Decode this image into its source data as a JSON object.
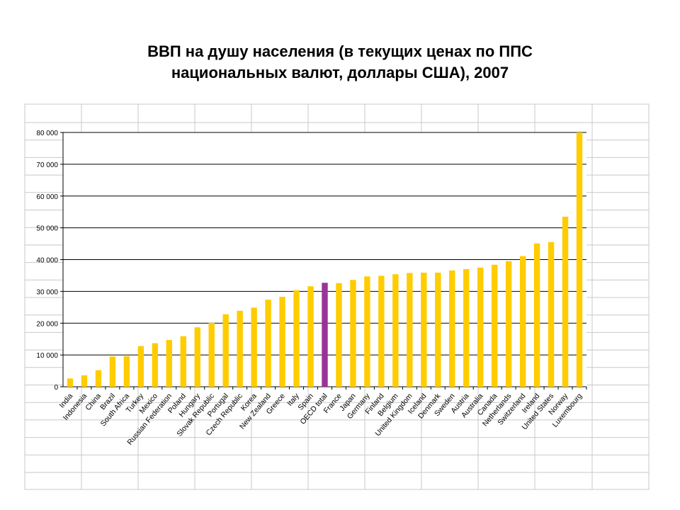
{
  "title_line1": "ВВП на душу населения (в текущих ценах по ППС",
  "title_line2": "национальных валют, доллары США), 2007",
  "colors": {
    "bar": "#FFCC00",
    "highlight": "#993399",
    "grid": "#000000",
    "sheet_grid": "#C8C8C8"
  },
  "chart_data": {
    "type": "bar",
    "title": "ВВП на душу населения (в текущих ценах по ППС национальных валют, доллары США), 2007",
    "xlabel": "",
    "ylabel": "",
    "ylim": [
      0,
      80000
    ],
    "yticks": [
      0,
      10000,
      20000,
      30000,
      40000,
      50000,
      60000,
      70000,
      80000
    ],
    "ytick_labels": [
      "0",
      "10 000",
      "20 000",
      "30 000",
      "40 000",
      "50 000",
      "60 000",
      "70 000",
      "80 000"
    ],
    "grid": true,
    "legend": "none",
    "highlight_category": "OECD total",
    "categories": [
      "India",
      "Indonesia",
      "China",
      "Brazil",
      "South Africa",
      "Turkey",
      "Mexico",
      "Russian Federation",
      "Poland",
      "Hungary",
      "Slovak Republic",
      "Portugal",
      "Czech Republic",
      "Korea",
      "New Zealand",
      "Greece",
      "Italy",
      "Spain",
      "OECD total",
      "France",
      "Japan",
      "Germany",
      "Finland",
      "Belgium",
      "United Kingdom",
      "Iceland",
      "Denmark",
      "Sweden",
      "Austria",
      "Australia",
      "Canada",
      "Netherlands",
      "Switzerland",
      "Ireland",
      "United States",
      "Norway",
      "Luxembourg"
    ],
    "values": [
      2600,
      3600,
      5200,
      9500,
      9600,
      12800,
      13700,
      14700,
      15900,
      18700,
      20100,
      22800,
      23900,
      24900,
      27400,
      28300,
      30400,
      31600,
      32700,
      32600,
      33600,
      34700,
      34900,
      35400,
      35800,
      35900,
      35900,
      36600,
      37000,
      37500,
      38400,
      39500,
      41100,
      45100,
      45500,
      53500,
      80000
    ]
  }
}
